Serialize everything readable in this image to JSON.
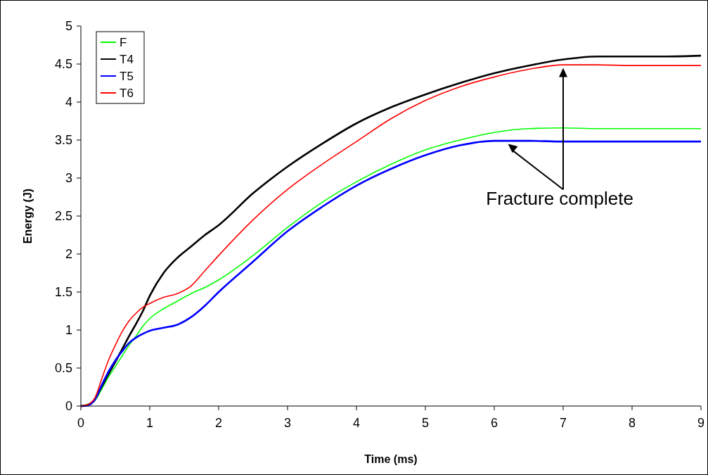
{
  "chart_data": {
    "type": "line",
    "xlabel": "Time (ms)",
    "ylabel": "Energy (J)",
    "x": [
      0,
      0.1,
      0.2,
      0.3,
      0.4,
      0.5,
      0.6,
      0.7,
      0.8,
      0.9,
      1.0,
      1.2,
      1.4,
      1.6,
      1.8,
      2,
      2.5,
      3,
      3.5,
      4,
      4.5,
      5,
      5.5,
      6,
      6.5,
      7,
      7.5,
      8,
      8.5,
      9
    ],
    "series": [
      {
        "name": "F",
        "color": "#00ff00",
        "x": [
          0,
          0.2,
          0.3,
          0.4,
          0.5,
          0.6,
          0.7,
          0.8,
          0.9,
          1.0,
          1.2,
          1.4,
          1.6,
          1.8,
          2,
          2.5,
          3,
          3.5,
          4,
          4.5,
          5,
          5.5,
          6,
          6.5,
          7,
          7.5,
          8,
          8.5,
          9
        ],
        "values": [
          0,
          0.07,
          0.22,
          0.38,
          0.52,
          0.66,
          0.8,
          0.92,
          1.05,
          1.15,
          1.28,
          1.38,
          1.48,
          1.56,
          1.66,
          1.98,
          2.35,
          2.68,
          2.95,
          3.18,
          3.37,
          3.5,
          3.6,
          3.65,
          3.66,
          3.65,
          3.65,
          3.65,
          3.65
        ]
      },
      {
        "name": "T4",
        "color": "#000000",
        "values": [
          0,
          0.01,
          0.08,
          0.25,
          0.42,
          0.58,
          0.75,
          0.92,
          1.08,
          1.25,
          1.45,
          1.75,
          1.95,
          2.1,
          2.25,
          2.38,
          2.8,
          3.15,
          3.45,
          3.72,
          3.93,
          4.1,
          4.25,
          4.38,
          4.48,
          4.56,
          4.6,
          4.6,
          4.6,
          4.61
        ]
      },
      {
        "name": "T5",
        "color": "#0000ff",
        "values": [
          0,
          0.01,
          0.08,
          0.27,
          0.45,
          0.6,
          0.72,
          0.83,
          0.9,
          0.95,
          0.99,
          1.03,
          1.07,
          1.17,
          1.32,
          1.5,
          1.9,
          2.3,
          2.62,
          2.9,
          3.12,
          3.3,
          3.43,
          3.49,
          3.49,
          3.48,
          3.48,
          3.48,
          3.48,
          3.48
        ]
      },
      {
        "name": "T6",
        "color": "#ff0000",
        "values": [
          0,
          0.02,
          0.1,
          0.35,
          0.6,
          0.8,
          0.98,
          1.12,
          1.22,
          1.3,
          1.35,
          1.43,
          1.48,
          1.58,
          1.78,
          1.98,
          2.45,
          2.85,
          3.18,
          3.48,
          3.78,
          4.02,
          4.2,
          4.33,
          4.43,
          4.49,
          4.49,
          4.48,
          4.48,
          4.48
        ]
      }
    ],
    "xlim": [
      0,
      9
    ],
    "xticks": [
      0,
      1,
      2,
      3,
      4,
      5,
      6,
      7,
      8,
      9
    ],
    "ylim": [
      0,
      5
    ],
    "yticks": [
      0,
      0.5,
      1,
      1.5,
      2,
      2.5,
      3,
      3.5,
      4,
      4.5,
      5
    ],
    "legend": "top left",
    "grid": false,
    "marker": "none",
    "line_style": "solid",
    "annotations": [
      "Fracture complete"
    ]
  }
}
